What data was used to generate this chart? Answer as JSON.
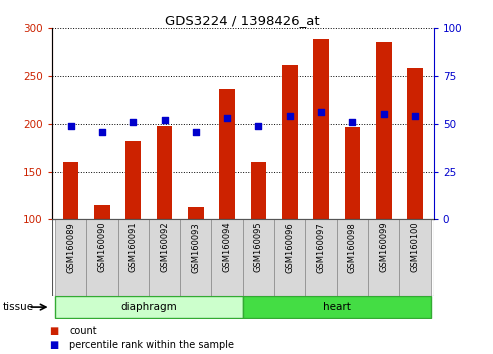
{
  "title": "GDS3224 / 1398426_at",
  "samples": [
    "GSM160089",
    "GSM160090",
    "GSM160091",
    "GSM160092",
    "GSM160093",
    "GSM160094",
    "GSM160095",
    "GSM160096",
    "GSM160097",
    "GSM160098",
    "GSM160099",
    "GSM160100"
  ],
  "count_values": [
    160,
    115,
    182,
    198,
    113,
    237,
    160,
    262,
    289,
    197,
    286,
    258
  ],
  "percentile_values": [
    49,
    46,
    51,
    52,
    46,
    53,
    49,
    54,
    56,
    51,
    55,
    54
  ],
  "count_base": 100,
  "ylim_left": [
    100,
    300
  ],
  "ylim_right": [
    0,
    100
  ],
  "yticks_left": [
    100,
    150,
    200,
    250,
    300
  ],
  "yticks_right": [
    0,
    25,
    50,
    75,
    100
  ],
  "bar_color": "#cc2200",
  "dot_color": "#0000cc",
  "tissue_groups": [
    {
      "label": "diaphragm",
      "start": 0,
      "end": 5,
      "color": "#ccffcc",
      "border_color": "#33aa33"
    },
    {
      "label": "heart",
      "start": 6,
      "end": 11,
      "color": "#44dd44",
      "border_color": "#33aa33"
    }
  ],
  "tissue_label": "tissue",
  "legend_count_label": "count",
  "legend_pct_label": "percentile rank within the sample",
  "background_color": "#ffffff",
  "plot_bg_color": "#ffffff",
  "grid_color": "#000000",
  "left_axis_color": "#cc2200",
  "right_axis_color": "#0000cc",
  "label_cell_color": "#d8d8d8",
  "label_cell_border": "#888888"
}
